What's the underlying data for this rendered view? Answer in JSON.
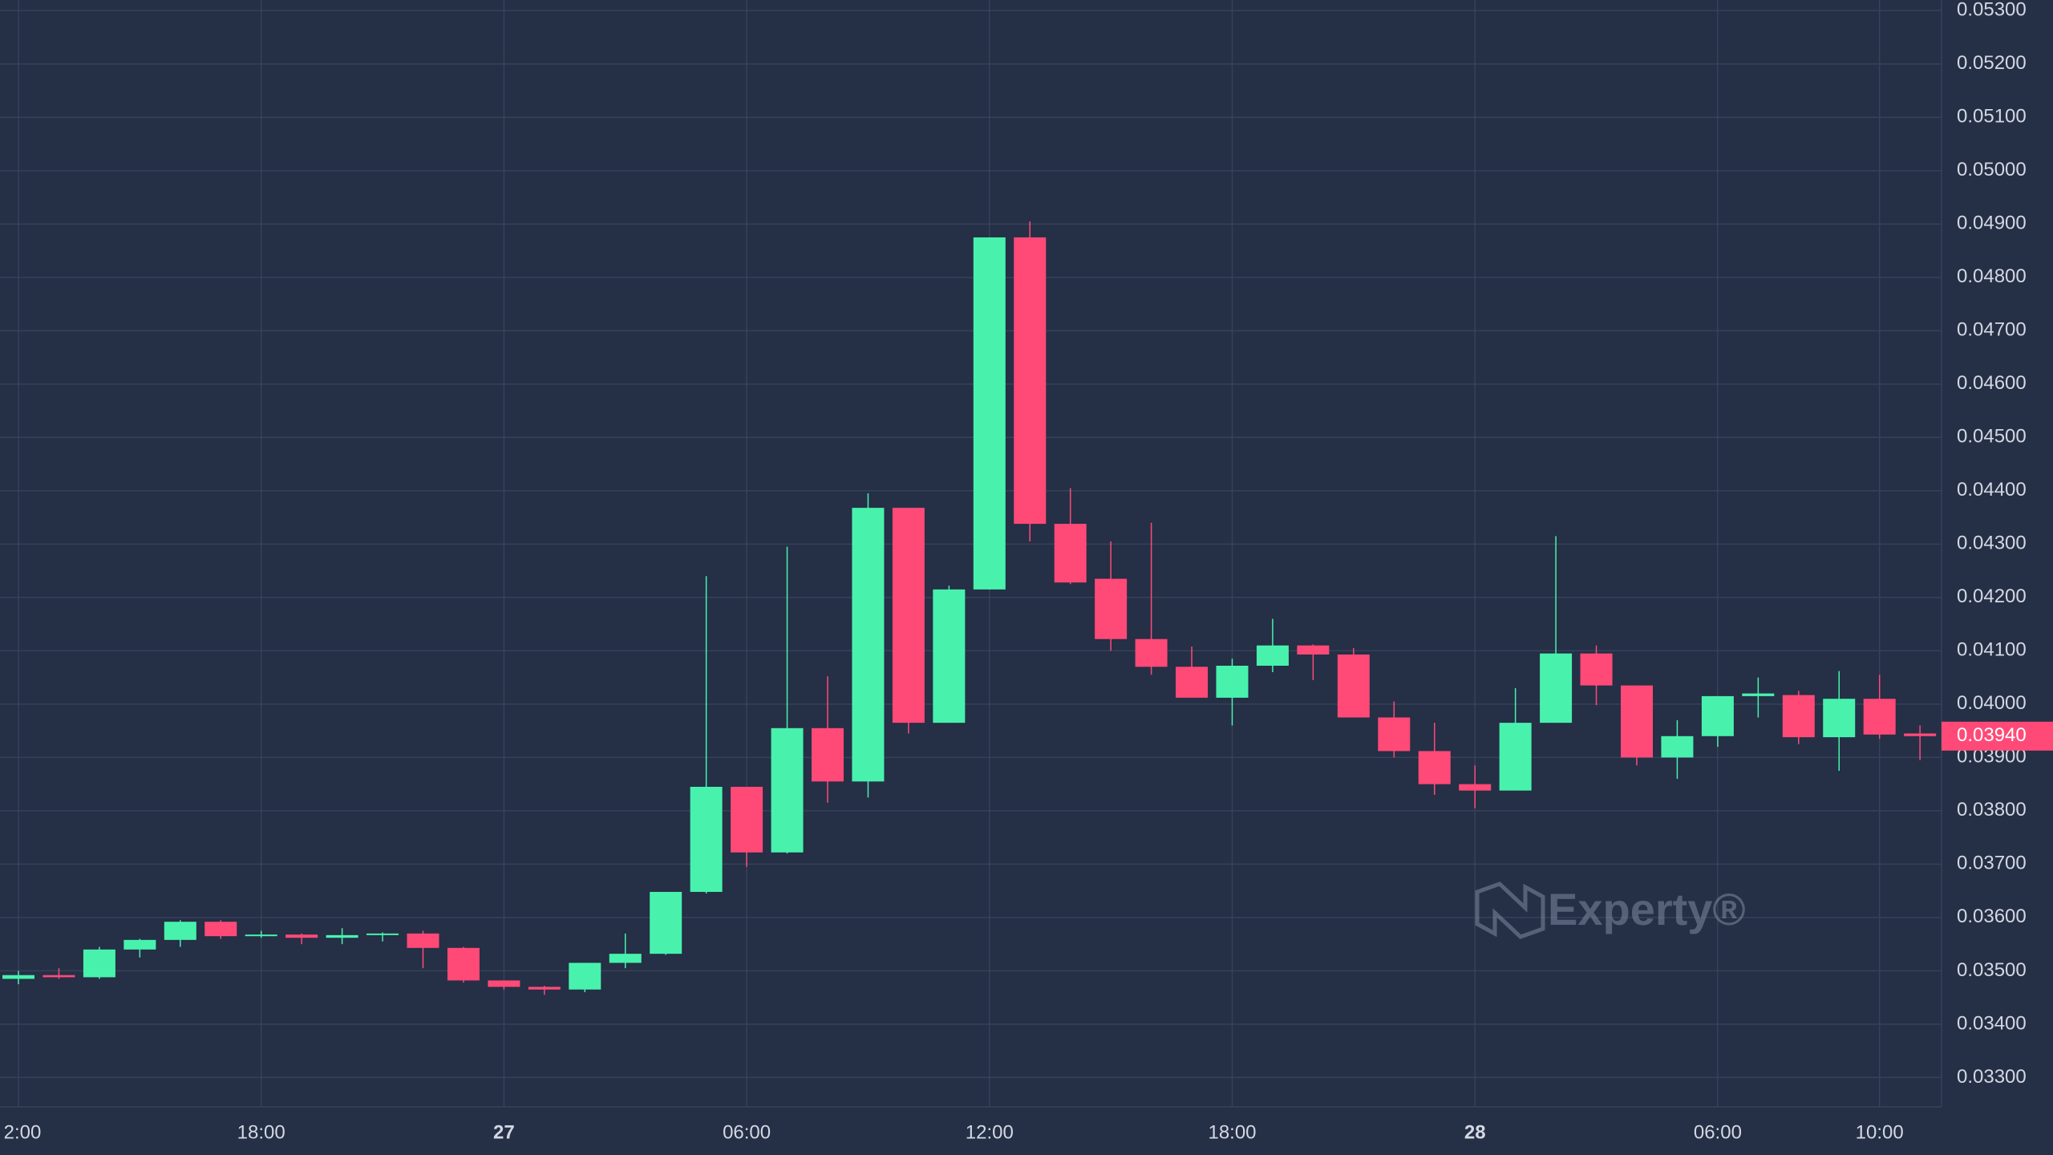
{
  "chart_data": {
    "type": "candlestick",
    "categories": [
      "2:00",
      null,
      null,
      null,
      null,
      null,
      "18:00",
      null,
      null,
      null,
      null,
      null,
      "27",
      null,
      null,
      null,
      null,
      null,
      "06:00",
      null,
      null,
      null,
      null,
      null,
      "12:00",
      null,
      null,
      null,
      null,
      null,
      "18:00",
      null,
      null,
      null,
      null,
      null,
      "28",
      null,
      null,
      null,
      null,
      null,
      "06:00",
      null,
      null,
      null,
      "10:00",
      null
    ],
    "open": [
      0.03485,
      0.03492,
      0.03488,
      0.0354,
      0.03558,
      0.03592,
      0.03565,
      0.03568,
      0.03562,
      0.03567,
      0.0357,
      0.03543,
      0.03482,
      0.0347,
      0.03465,
      0.03515,
      0.03532,
      0.03648,
      0.03845,
      0.03722,
      0.03955,
      0.03855,
      0.04368,
      0.03965,
      0.04215,
      0.04875,
      0.04338,
      0.04235,
      0.04122,
      0.0407,
      0.04012,
      0.04072,
      0.0411,
      0.04093,
      0.03975,
      0.03912,
      0.0385,
      0.03838,
      0.03965,
      0.04095,
      0.04035,
      0.039,
      0.0394,
      0.04015,
      0.04017,
      0.03938,
      0.0401,
      0.03945
    ],
    "high": [
      0.035,
      0.03505,
      0.03545,
      0.0356,
      0.03595,
      0.03595,
      0.03575,
      0.0357,
      0.0358,
      0.03572,
      0.03575,
      0.03545,
      0.03482,
      0.03472,
      0.03515,
      0.0357,
      0.03648,
      0.0424,
      0.03845,
      0.04295,
      0.04052,
      0.04395,
      0.04368,
      0.04222,
      0.04875,
      0.04905,
      0.04405,
      0.04305,
      0.0434,
      0.04108,
      0.04085,
      0.0416,
      0.04112,
      0.04105,
      0.04005,
      0.03965,
      0.03885,
      0.0403,
      0.04315,
      0.0411,
      0.04035,
      0.0397,
      0.04015,
      0.0405,
      0.04025,
      0.04062,
      0.04055,
      0.0396
    ],
    "low": [
      0.03475,
      0.03485,
      0.03485,
      0.03525,
      0.03545,
      0.0356,
      0.03562,
      0.0355,
      0.0355,
      0.03555,
      0.03505,
      0.03478,
      0.03465,
      0.03455,
      0.0346,
      0.03505,
      0.0353,
      0.03645,
      0.03695,
      0.0372,
      0.03815,
      0.03825,
      0.03945,
      0.03965,
      0.04215,
      0.04305,
      0.04225,
      0.041,
      0.04055,
      0.04012,
      0.0396,
      0.0406,
      0.04045,
      0.03975,
      0.039,
      0.0383,
      0.03805,
      0.03838,
      0.03965,
      0.03998,
      0.03885,
      0.0386,
      0.0392,
      0.03975,
      0.03925,
      0.03875,
      0.03935,
      0.03895
    ],
    "close": [
      0.03492,
      0.03488,
      0.0354,
      0.03558,
      0.03592,
      0.03565,
      0.03568,
      0.03562,
      0.03567,
      0.0357,
      0.03543,
      0.03482,
      0.0347,
      0.03465,
      0.03515,
      0.03532,
      0.03648,
      0.03845,
      0.03722,
      0.03955,
      0.03855,
      0.04368,
      0.03965,
      0.04215,
      0.04875,
      0.04338,
      0.04228,
      0.04122,
      0.0407,
      0.04012,
      0.04072,
      0.0411,
      0.04093,
      0.03975,
      0.03912,
      0.0385,
      0.03838,
      0.03965,
      0.04095,
      0.04035,
      0.039,
      0.0394,
      0.04015,
      0.0402,
      0.03938,
      0.0401,
      0.03943,
      0.0394
    ],
    "up_color": "#48f2ad",
    "down_color": "#ff4a78",
    "ylim": [
      0.03245,
      0.0532
    ],
    "yticks": [
      {
        "value": 0.033,
        "label": "0.03300"
      },
      {
        "value": 0.034,
        "label": "0.03400"
      },
      {
        "value": 0.035,
        "label": "0.03500"
      },
      {
        "value": 0.036,
        "label": "0.03600"
      },
      {
        "value": 0.037,
        "label": "0.03700"
      },
      {
        "value": 0.038,
        "label": "0.03800"
      },
      {
        "value": 0.039,
        "label": "0.03900"
      },
      {
        "value": 0.04,
        "label": "0.04000"
      },
      {
        "value": 0.041,
        "label": "0.04100"
      },
      {
        "value": 0.042,
        "label": "0.04200"
      },
      {
        "value": 0.043,
        "label": "0.04300"
      },
      {
        "value": 0.044,
        "label": "0.04400"
      },
      {
        "value": 0.045,
        "label": "0.04500"
      },
      {
        "value": 0.046,
        "label": "0.04600"
      },
      {
        "value": 0.047,
        "label": "0.04700"
      },
      {
        "value": 0.048,
        "label": "0.04800"
      },
      {
        "value": 0.049,
        "label": "0.04900"
      },
      {
        "value": 0.05,
        "label": "0.05000"
      },
      {
        "value": 0.051,
        "label": "0.05100"
      },
      {
        "value": 0.052,
        "label": "0.05200"
      },
      {
        "value": 0.053,
        "label": "0.05300"
      }
    ],
    "last_price": {
      "value": 0.0394,
      "label": "0.03940"
    },
    "grid": true,
    "watermark": "Experty®"
  }
}
